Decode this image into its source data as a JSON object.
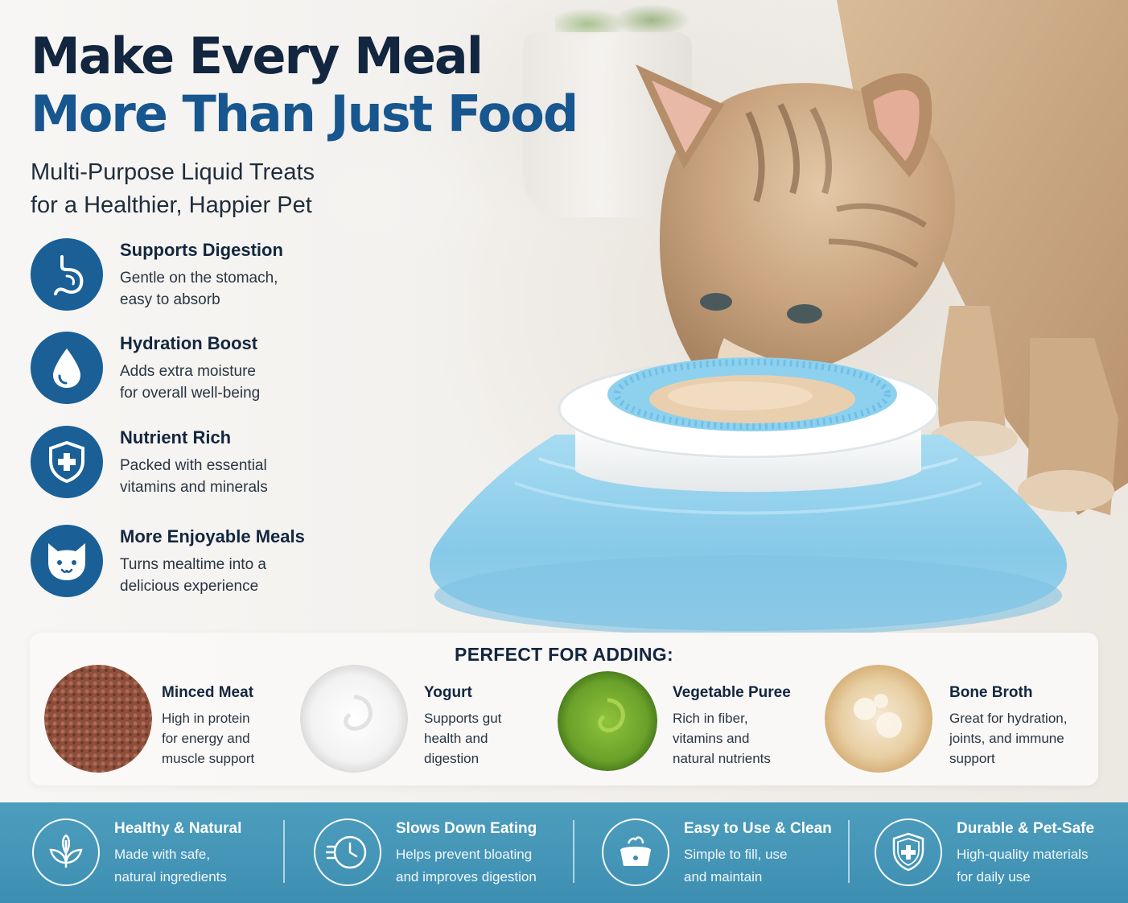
{
  "headline": {
    "line1": "Make Every Meal",
    "line2": "More Than Just Food"
  },
  "subheadline": {
    "line1": "Multi-Purpose Liquid Treats",
    "line2": "for a Healthier, Happier Pet"
  },
  "benefits": [
    {
      "icon": "stomach-icon",
      "title": "Supports Digestion",
      "desc_line1": "Gentle on the stomach,",
      "desc_line2": "easy to absorb"
    },
    {
      "icon": "water-drop-icon",
      "title": "Hydration Boost",
      "desc_line1": "Adds extra moisture",
      "desc_line2": "for overall well-being"
    },
    {
      "icon": "shield-plus-icon",
      "title": "Nutrient Rich",
      "desc_line1": "Packed with essential",
      "desc_line2": "vitamins and minerals"
    },
    {
      "icon": "cat-face-icon",
      "title": "More Enjoyable Meals",
      "desc_line1": "Turns mealtime into a",
      "desc_line2": "delicious experience"
    }
  ],
  "adding": {
    "title": "PERFECT FOR ADDING:",
    "items": [
      {
        "photo": "minced-meat-photo",
        "name": "Minced Meat",
        "l1": "High in protein",
        "l2": "for energy and",
        "l3": "muscle support"
      },
      {
        "photo": "yogurt-photo",
        "name": "Yogurt",
        "l1": "Supports gut",
        "l2": "health and",
        "l3": "digestion"
      },
      {
        "photo": "vegetable-puree-photo",
        "name": "Vegetable Puree",
        "l1": "Rich in fiber,",
        "l2": "vitamins and",
        "l3": "natural nutrients"
      },
      {
        "photo": "bone-broth-photo",
        "name": "Bone Broth",
        "l1": "Great for hydration,",
        "l2": "joints, and immune",
        "l3": "support"
      }
    ]
  },
  "features": [
    {
      "icon": "leaf-icon",
      "title": "Healthy & Natural",
      "l1": "Made with safe,",
      "l2": "natural ingredients"
    },
    {
      "icon": "clock-icon",
      "title": "Slows Down Eating",
      "l1": "Helps prevent bloating",
      "l2": "and improves digestion"
    },
    {
      "icon": "bowl-icon",
      "title": "Easy to Use & Clean",
      "l1": "Simple to fill, use",
      "l2": "and maintain"
    },
    {
      "icon": "shield-plus-icon",
      "title": "Durable & Pet-Safe",
      "l1": "High-quality materials",
      "l2": "for daily use"
    }
  ],
  "colors": {
    "navy": "#13263f",
    "accent_blue": "#17568e",
    "icon_circle": "#1a5f96",
    "footer": "#3d8fb2",
    "feeder_blue": "#8fd0ec"
  }
}
